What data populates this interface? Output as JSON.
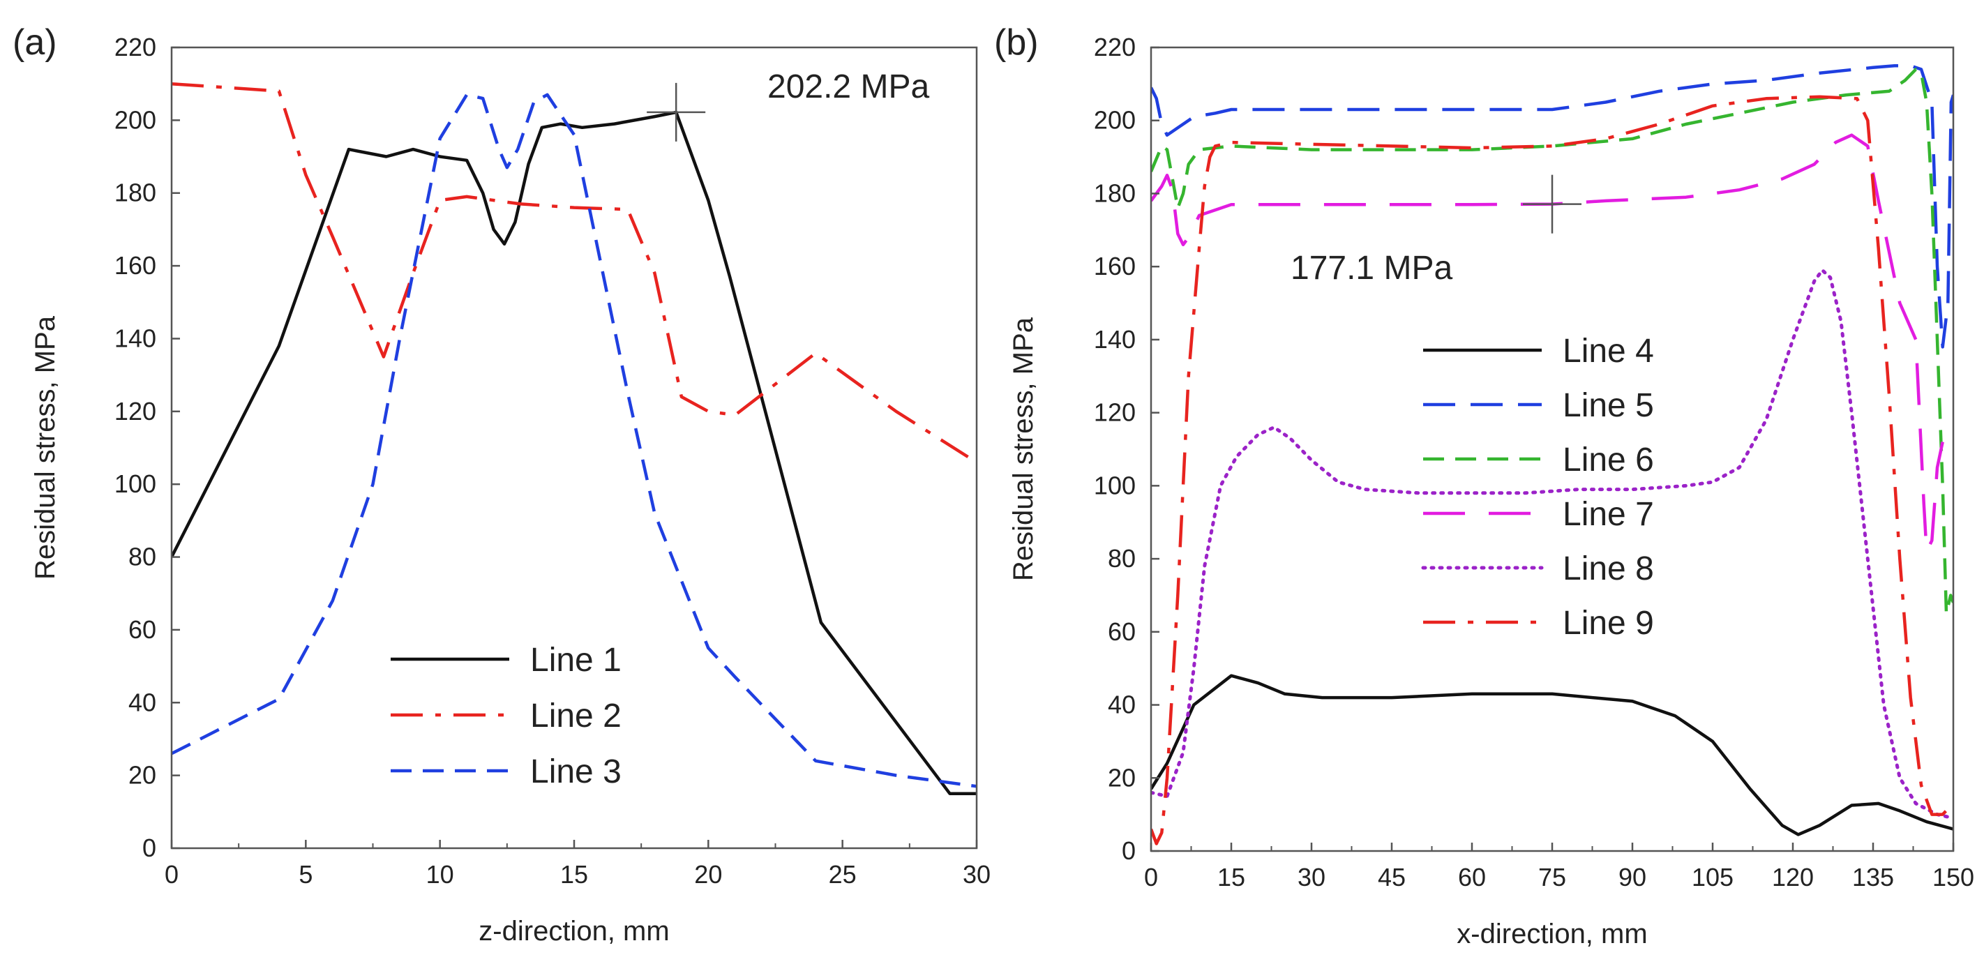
{
  "colors": {
    "black": "#111111",
    "red": "#e8231f",
    "blue": "#1f3fe0",
    "green": "#35b52f",
    "magenta": "#e21ce0",
    "purple": "#9b22c8"
  },
  "chart_data": [
    {
      "type": "line",
      "panel_label": "(a)",
      "xlabel": "z-direction, mm",
      "ylabel": "Residual stress, MPa",
      "xlim": [
        0,
        30
      ],
      "ylim": [
        0,
        220
      ],
      "xticks": [
        0,
        5,
        10,
        15,
        20,
        25,
        30
      ],
      "yticks": [
        0,
        20,
        40,
        60,
        80,
        100,
        120,
        140,
        160,
        180,
        200,
        220
      ],
      "grid": false,
      "legend_position": "bottom-center",
      "annotations": [
        {
          "text": "202.2 MPa",
          "x": 18.8,
          "y": 202.2
        }
      ],
      "series": [
        {
          "name": "Line 1",
          "color": "#111111",
          "style": "solid",
          "points": [
            [
              0,
              80
            ],
            [
              4,
              138
            ],
            [
              6.6,
              192
            ],
            [
              8,
              190
            ],
            [
              9,
              192
            ],
            [
              10,
              190
            ],
            [
              11,
              189
            ],
            [
              11.6,
              180
            ],
            [
              12,
              170
            ],
            [
              12.4,
              166
            ],
            [
              12.8,
              172
            ],
            [
              13.3,
              188
            ],
            [
              13.8,
              198
            ],
            [
              14.5,
              199
            ],
            [
              15.3,
              198
            ],
            [
              16.5,
              199
            ],
            [
              18,
              201
            ],
            [
              18.8,
              202.2
            ],
            [
              20,
              178
            ],
            [
              20.8,
              157
            ],
            [
              24.2,
              62
            ],
            [
              29,
              15
            ],
            [
              30,
              15
            ]
          ]
        },
        {
          "name": "Line 2",
          "color": "#e8231f",
          "style": "dashdot",
          "points": [
            [
              0,
              210
            ],
            [
              4,
              208
            ],
            [
              5,
              185
            ],
            [
              6,
              168
            ],
            [
              7.9,
              135
            ],
            [
              9,
              158
            ],
            [
              10,
              178
            ],
            [
              11,
              179
            ],
            [
              13,
              177
            ],
            [
              15,
              176
            ],
            [
              17,
              175.5
            ],
            [
              18,
              158
            ],
            [
              19,
              124
            ],
            [
              20,
              120
            ],
            [
              21,
              119
            ],
            [
              24,
              136
            ],
            [
              27,
              120
            ],
            [
              30,
              106
            ]
          ]
        },
        {
          "name": "Line 3",
          "color": "#1f3fe0",
          "style": "dashed",
          "points": [
            [
              0,
              26
            ],
            [
              4,
              41
            ],
            [
              6,
              68
            ],
            [
              7.5,
              100
            ],
            [
              8.5,
              140
            ],
            [
              10,
              195
            ],
            [
              11,
              207
            ],
            [
              11.6,
              206
            ],
            [
              12.2,
              192
            ],
            [
              12.5,
              187
            ],
            [
              12.9,
              192
            ],
            [
              13.5,
              205
            ],
            [
              14,
              207
            ],
            [
              15,
              196
            ],
            [
              17,
              125
            ],
            [
              18,
              92
            ],
            [
              20,
              55
            ],
            [
              21,
              47
            ],
            [
              24,
              24
            ],
            [
              27,
              20
            ],
            [
              30,
              17
            ]
          ]
        }
      ]
    },
    {
      "type": "line",
      "panel_label": "(b)",
      "xlabel": "x-direction, mm",
      "ylabel": "Residual stress, MPa",
      "xlim": [
        0,
        150
      ],
      "ylim": [
        0,
        220
      ],
      "xticks": [
        0,
        15,
        30,
        45,
        60,
        75,
        90,
        105,
        120,
        135,
        150
      ],
      "yticks": [
        0,
        20,
        40,
        60,
        80,
        100,
        120,
        140,
        160,
        180,
        200,
        220
      ],
      "grid": false,
      "legend_position": "center",
      "annotations": [
        {
          "text": "177.1 MPa",
          "x": 75,
          "y": 177.1
        }
      ],
      "series": [
        {
          "name": "Line 4",
          "color": "#111111",
          "style": "solid",
          "points": [
            [
              0,
              17
            ],
            [
              3,
              24
            ],
            [
              8,
              40
            ],
            [
              15,
              48
            ],
            [
              20,
              46
            ],
            [
              25,
              43
            ],
            [
              32,
              42
            ],
            [
              45,
              42
            ],
            [
              60,
              43
            ],
            [
              75,
              43
            ],
            [
              90,
              41
            ],
            [
              98,
              37
            ],
            [
              105,
              30
            ],
            [
              112,
              17
            ],
            [
              118,
              7
            ],
            [
              121,
              4.5
            ],
            [
              125,
              7
            ],
            [
              131,
              12.5
            ],
            [
              136,
              13
            ],
            [
              140,
              11
            ],
            [
              145,
              8
            ],
            [
              150,
              6
            ]
          ]
        },
        {
          "name": "Line 5",
          "color": "#1f3fe0",
          "style": "longdash",
          "points": [
            [
              0,
              209
            ],
            [
              1,
              206
            ],
            [
              2,
              199
            ],
            [
              3,
              196
            ],
            [
              5,
              198
            ],
            [
              8,
              201
            ],
            [
              12,
              202
            ],
            [
              15,
              203
            ],
            [
              30,
              203
            ],
            [
              45,
              203
            ],
            [
              60,
              203
            ],
            [
              75,
              203
            ],
            [
              85,
              205
            ],
            [
              95,
              208
            ],
            [
              105,
              210
            ],
            [
              115,
              211
            ],
            [
              125,
              213
            ],
            [
              135,
              214.5
            ],
            [
              139,
              215
            ],
            [
              142,
              215
            ],
            [
              144,
              214
            ],
            [
              146,
              205
            ],
            [
              147,
              160
            ],
            [
              148,
              138
            ],
            [
              149,
              150
            ],
            [
              149.6,
              205
            ],
            [
              150,
              207
            ]
          ]
        },
        {
          "name": "Line 6",
          "color": "#35b52f",
          "style": "dashed",
          "points": [
            [
              0,
              186
            ],
            [
              2,
              193
            ],
            [
              3,
              192
            ],
            [
              4,
              184
            ],
            [
              5,
              176
            ],
            [
              6,
              180
            ],
            [
              7,
              188
            ],
            [
              9,
              192
            ],
            [
              15,
              193
            ],
            [
              30,
              192
            ],
            [
              45,
              192
            ],
            [
              60,
              192
            ],
            [
              75,
              193
            ],
            [
              90,
              195
            ],
            [
              100,
              199
            ],
            [
              110,
              202
            ],
            [
              120,
              205
            ],
            [
              130,
              207
            ],
            [
              138,
              208
            ],
            [
              141,
              211
            ],
            [
              143,
              214
            ],
            [
              144,
              213
            ],
            [
              145,
              205
            ],
            [
              146,
              180
            ],
            [
              147,
              140
            ],
            [
              148,
              100
            ],
            [
              148.7,
              65
            ],
            [
              149.5,
              70
            ],
            [
              150,
              68
            ]
          ]
        },
        {
          "name": "Line 7",
          "color": "#e21ce0",
          "style": "sparsedash",
          "points": [
            [
              0,
              178
            ],
            [
              2,
              182
            ],
            [
              3,
              185
            ],
            [
              4,
              181
            ],
            [
              5,
              169
            ],
            [
              6,
              166
            ],
            [
              7,
              168
            ],
            [
              9,
              174
            ],
            [
              15,
              177
            ],
            [
              30,
              177
            ],
            [
              45,
              177
            ],
            [
              60,
              177
            ],
            [
              75,
              177.1
            ],
            [
              85,
              178
            ],
            [
              100,
              179
            ],
            [
              110,
              181
            ],
            [
              118,
              184
            ],
            [
              124,
              188
            ],
            [
              128,
              194
            ],
            [
              131,
              196
            ],
            [
              134,
              193
            ],
            [
              136,
              178
            ],
            [
              140,
              150
            ],
            [
              143,
              140
            ],
            [
              144.5,
              95
            ],
            [
              145,
              82
            ],
            [
              146,
              85
            ],
            [
              147,
              105
            ],
            [
              148,
              112
            ]
          ]
        },
        {
          "name": "Line 8",
          "color": "#9b22c8",
          "style": "dotted",
          "points": [
            [
              0,
              16
            ],
            [
              3,
              15
            ],
            [
              6,
              27
            ],
            [
              8,
              50
            ],
            [
              10,
              78
            ],
            [
              13,
              100
            ],
            [
              16,
              108
            ],
            [
              20,
              114
            ],
            [
              23,
              116
            ],
            [
              26,
              113
            ],
            [
              30,
              107
            ],
            [
              35,
              101
            ],
            [
              40,
              99
            ],
            [
              50,
              98
            ],
            [
              60,
              98
            ],
            [
              70,
              98
            ],
            [
              80,
              99
            ],
            [
              90,
              99
            ],
            [
              100,
              100
            ],
            [
              105,
              101
            ],
            [
              110,
              105
            ],
            [
              115,
              118
            ],
            [
              120,
              140
            ],
            [
              124,
              156
            ],
            [
              125.5,
              159
            ],
            [
              127,
              157
            ],
            [
              129,
              145
            ],
            [
              131,
              120
            ],
            [
              134,
              80
            ],
            [
              137,
              40
            ],
            [
              140,
              20
            ],
            [
              143,
              13
            ],
            [
              147,
              10
            ],
            [
              150,
              9
            ]
          ]
        },
        {
          "name": "Line 9",
          "color": "#e8231f",
          "style": "dashdot",
          "points": [
            [
              0,
              6
            ],
            [
              1,
              2
            ],
            [
              2,
              5
            ],
            [
              3,
              20
            ],
            [
              5,
              70
            ],
            [
              7,
              130
            ],
            [
              9,
              165
            ],
            [
              10,
              182
            ],
            [
              11,
              190
            ],
            [
              12,
              193
            ],
            [
              15,
              194
            ],
            [
              30,
              193.5
            ],
            [
              45,
              193
            ],
            [
              60,
              192.5
            ],
            [
              75,
              193
            ],
            [
              85,
              195
            ],
            [
              95,
              199
            ],
            [
              105,
              204
            ],
            [
              115,
              206
            ],
            [
              125,
              206.5
            ],
            [
              132,
              206
            ],
            [
              134,
              200
            ],
            [
              136,
              165
            ],
            [
              138,
              125
            ],
            [
              140,
              80
            ],
            [
              142,
              42
            ],
            [
              144,
              18
            ],
            [
              146,
              10
            ],
            [
              148,
              10
            ],
            [
              150,
              13
            ]
          ]
        }
      ]
    }
  ]
}
